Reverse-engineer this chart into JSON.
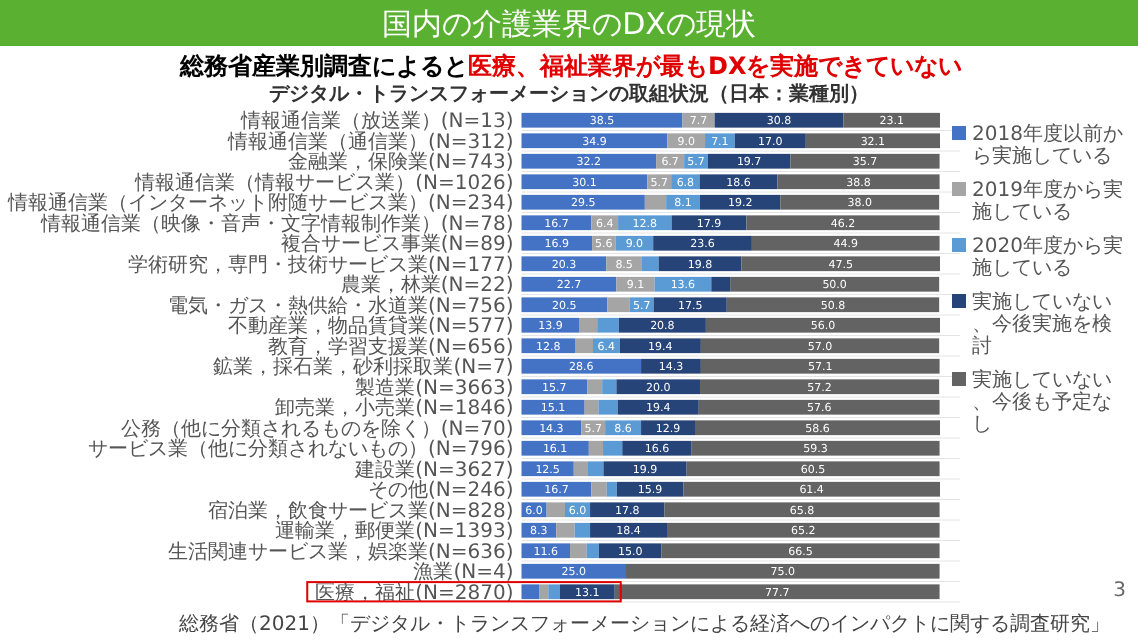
{
  "chart_data": {
    "type": "bar",
    "orientation": "horizontal",
    "stacked": true,
    "title": "国内の介護業界のDXの現状",
    "subtitle": "デジタル・トランスフォーメーションの取組状況（日本：業種別）",
    "annotations": [
      "総務省産業別調査によると",
      "医療、福祉業界が最もDXを実施できていない",
      "総務省（2021）「デジタル・トランスフォーメーションによる経済へのインパクトに関する調査研究」",
      "3"
    ],
    "categories": [
      "情報通信業（放送業）(N=13)",
      "情報通信業（通信業）(N=312)",
      "金融業，保険業(N=743)",
      "情報通信業（情報サービス業）(N=1026)",
      "情報通信業（インターネット附随サービス業）(N=234)",
      "情報通信業（映像・音声・文字情報制作業）(N=78)",
      "複合サービス事業(N=89)",
      "学術研究，専門・技術サービス業(N=177)",
      "農業，林業(N=22)",
      "電気・ガス・熱供給・水道業(N=756)",
      "不動産業，物品賃貸業(N=577)",
      "教育，学習支援業(N=656)",
      "鉱業，採石業，砂利採取業(N=7)",
      "製造業(N=3663)",
      "卸売業，小売業(N=1846)",
      "公務（他に分類されるものを除く）(N=70)",
      "サービス業（他に分類されないもの）(N=796)",
      "建設業(N=3627)",
      "その他(N=246)",
      "宿泊業，飲食サービス業(N=828)",
      "運輸業，郵便業(N=1393)",
      "生活関連サービス業，娯楽業(N=636)",
      "漁業(N=4)",
      "医療，福祉(N=2870)"
    ],
    "series": [
      {
        "name": "2018年度以前から実施している",
        "color": "#4472c4",
        "values": [
          38.5,
          34.9,
          32.2,
          30.1,
          29.5,
          16.7,
          16.9,
          20.3,
          22.7,
          20.5,
          13.9,
          12.8,
          28.6,
          15.7,
          15.1,
          14.3,
          16.1,
          12.5,
          16.7,
          6.0,
          8.3,
          11.6,
          25.0,
          4.2
        ],
        "value_labels": [
          "38.5",
          "34.9",
          "32.2",
          "30.1",
          "29.5",
          "16.7",
          "16.9",
          "20.3",
          "22.7",
          "20.5",
          "13.9",
          "12.8",
          "28.6",
          "15.7",
          "15.1",
          "14.3",
          "16.1",
          "12.5",
          "16.7",
          "6.0",
          "8.3",
          "11.6",
          "25.0",
          null
        ]
      },
      {
        "name": "2019年度から実施している",
        "color": "#a5a5a5",
        "values": [
          7.7,
          9.0,
          6.7,
          5.7,
          5.1,
          6.4,
          5.6,
          8.5,
          9.1,
          5.4,
          4.2,
          4.3,
          0.0,
          3.6,
          3.3,
          5.7,
          3.4,
          3.4,
          3.7,
          4.4,
          4.4,
          4.0,
          0.0,
          2.2
        ],
        "value_labels": [
          "7.7",
          "9.0",
          "6.7",
          "5.7",
          null,
          "6.4",
          "5.6",
          "8.5",
          "9.1",
          null,
          null,
          null,
          null,
          null,
          null,
          "5.7",
          null,
          null,
          null,
          null,
          null,
          null,
          null,
          null
        ]
      },
      {
        "name": "2020年度から実施している",
        "color": "#5b9bd5",
        "values": [
          0.0,
          7.1,
          5.7,
          6.8,
          8.1,
          12.8,
          9.0,
          4.0,
          13.6,
          5.7,
          5.2,
          6.4,
          0.0,
          3.4,
          4.6,
          8.6,
          4.6,
          3.7,
          2.4,
          6.0,
          3.7,
          2.9,
          0.0,
          2.8
        ],
        "value_labels": [
          null,
          "7.1",
          "5.7",
          "6.8",
          "8.1",
          "12.8",
          "9.0",
          null,
          "13.6",
          "5.7",
          null,
          "6.4",
          null,
          null,
          null,
          "8.6",
          null,
          null,
          null,
          "6.0",
          null,
          null,
          null,
          null
        ]
      },
      {
        "name": "実施していない、今後実施を検討",
        "color": "#264478",
        "values": [
          30.8,
          17.0,
          19.7,
          18.6,
          19.2,
          17.9,
          23.6,
          19.8,
          4.5,
          17.5,
          20.8,
          19.4,
          14.3,
          20.0,
          19.4,
          12.9,
          16.6,
          19.9,
          15.9,
          17.8,
          18.4,
          15.0,
          0.0,
          13.1
        ],
        "value_labels": [
          "30.8",
          "17.0",
          "19.7",
          "18.6",
          "19.2",
          "17.9",
          "23.6",
          "19.8",
          null,
          "17.5",
          "20.8",
          "19.4",
          "14.3",
          "20.0",
          "19.4",
          "12.9",
          "16.6",
          "19.9",
          "15.9",
          "17.8",
          "18.4",
          "15.0",
          null,
          "13.1"
        ]
      },
      {
        "name": "実施していない、今後も予定なし",
        "color": "#636363",
        "values": [
          23.1,
          32.1,
          35.7,
          38.8,
          38.0,
          46.2,
          44.9,
          47.5,
          50.0,
          50.8,
          56.0,
          57.0,
          57.1,
          57.2,
          57.6,
          58.6,
          59.3,
          60.5,
          61.4,
          65.8,
          65.2,
          66.5,
          75.0,
          77.7
        ],
        "value_labels": [
          "23.1",
          "32.1",
          "35.7",
          "38.8",
          "38.0",
          "46.2",
          "44.9",
          "47.5",
          "50.0",
          "50.8",
          "56.0",
          "57.0",
          "57.1",
          "57.2",
          "57.6",
          "58.6",
          "59.3",
          "60.5",
          "61.4",
          "65.8",
          "65.2",
          "66.5",
          "75.0",
          "77.7"
        ]
      }
    ],
    "legend": "right"
  }
}
